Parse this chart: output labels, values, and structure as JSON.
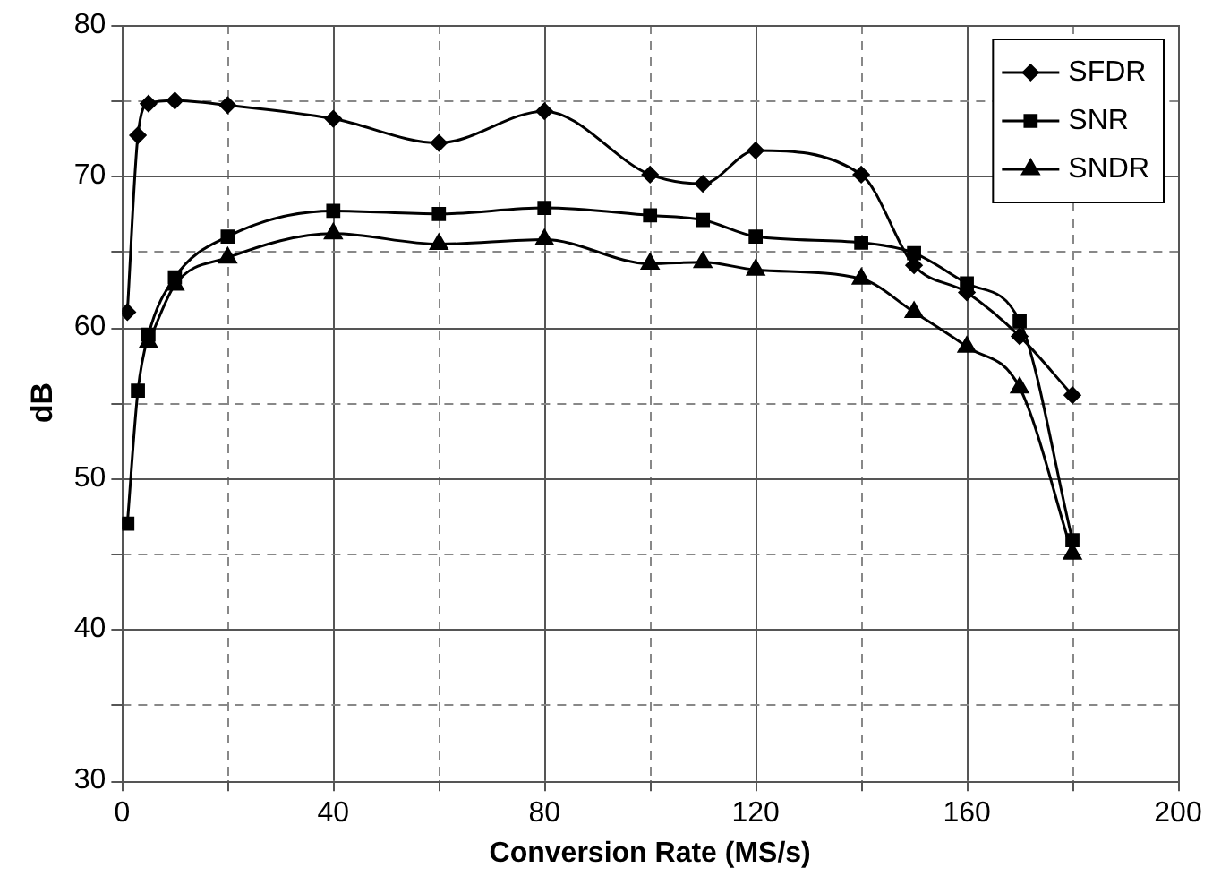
{
  "chart_data": {
    "type": "line",
    "xlabel": "Conversion Rate (MS/s)",
    "ylabel": "dB",
    "xlim": [
      0,
      200
    ],
    "xticks": [
      0,
      {
        "value": 20,
        "label": null
      },
      40,
      {
        "value": 60,
        "label": null
      },
      80,
      {
        "value": 100,
        "label": null
      },
      120,
      {
        "value": 140,
        "label": null
      },
      160,
      {
        "value": 180,
        "label": null
      },
      200
    ],
    "ylim": [
      30,
      80
    ],
    "yticks": [
      30,
      {
        "value": 35,
        "label": null
      },
      40,
      {
        "value": 45,
        "label": null
      },
      50,
      {
        "value": 55,
        "label": null
      },
      60,
      {
        "value": 65,
        "label": null
      },
      70,
      {
        "value": 75,
        "label": null
      },
      80
    ],
    "grid": true,
    "legend": "top right",
    "series": [
      {
        "name": "SFDR",
        "color": "#000000",
        "marker": "diamond",
        "x": [
          1,
          3,
          5,
          10,
          20,
          40,
          60,
          80,
          100,
          110,
          120,
          140,
          150,
          160,
          170,
          180
        ],
        "values": [
          61,
          72.7,
          74.8,
          75,
          74.7,
          73.8,
          72.2,
          74.3,
          70.1,
          69.5,
          71.7,
          70.1,
          64.1,
          62.3,
          59.4,
          55.5
        ]
      },
      {
        "name": "SNR",
        "color": "#000000",
        "marker": "square",
        "x": [
          1,
          3,
          5,
          10,
          20,
          40,
          60,
          80,
          100,
          110,
          120,
          140,
          150,
          160,
          170,
          180
        ],
        "values": [
          47,
          55.8,
          59.5,
          63.3,
          66,
          67.7,
          67.5,
          67.9,
          67.4,
          67.1,
          66,
          65.6,
          64.9,
          62.9,
          60.4,
          45.9
        ]
      },
      {
        "name": "SNDR",
        "color": "#000000",
        "marker": "triangle",
        "x": [
          5,
          10,
          20,
          40,
          60,
          80,
          100,
          110,
          120,
          140,
          150,
          160,
          170,
          180
        ],
        "values": [
          59,
          62.8,
          64.6,
          66.2,
          65.5,
          65.8,
          64.2,
          64.3,
          63.8,
          63.2,
          61,
          58.7,
          56,
          45
        ]
      }
    ]
  }
}
